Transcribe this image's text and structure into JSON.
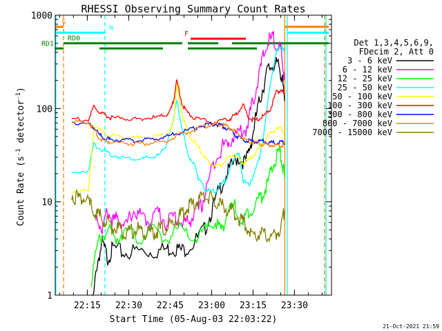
{
  "chart_data": {
    "type": "line",
    "title": "RHESSI Observing Summary Count Rates",
    "xlabel": "Start Time (05-Aug-03 22:03:22)",
    "ylabel": "Count Rate (s",
    "ylabel_sup": "-1",
    "ylabel_tail": " detector",
    "ylabel_tail_sup": "-1",
    "ylabel_close": ")",
    "xlim_min": [
      0,
      100
    ],
    "ylim": [
      1,
      1000
    ],
    "yscale": "log",
    "xticks": [
      {
        "label": "22:15",
        "min": 11.6
      },
      {
        "label": "22:30",
        "min": 26.6
      },
      {
        "label": "22:45",
        "min": 41.6
      },
      {
        "label": "23:00",
        "min": 56.6
      },
      {
        "label": "23:15",
        "min": 71.6
      },
      {
        "label": "23:30",
        "min": 86.6
      }
    ],
    "yticks": [
      {
        "label": "1",
        "v": 1
      },
      {
        "label": "10",
        "v": 10
      },
      {
        "label": "100",
        "v": 100
      },
      {
        "label": "1000",
        "v": 1000
      }
    ],
    "legend_header": [
      "Det 1,3,4,5,6,9,",
      "FDecim 2, Att 0"
    ],
    "series": [
      {
        "name": "3 - 6 keV",
        "color": "#000000",
        "x": [
          13,
          15,
          17,
          19,
          21,
          25,
          30,
          35,
          40,
          43,
          46,
          50,
          54,
          57,
          60,
          63,
          66,
          69,
          71,
          73,
          75,
          77,
          79,
          81,
          82,
          83
        ],
        "y": [
          0.5,
          2.1,
          3.6,
          2.5,
          3.2,
          2.8,
          3.0,
          2.9,
          3.1,
          3.2,
          3.0,
          3.6,
          5.0,
          8.5,
          15,
          22,
          30,
          26,
          45,
          90,
          160,
          260,
          300,
          280,
          220,
          120
        ]
      },
      {
        "name": "6 - 12 keV",
        "color": "#ff00ff",
        "x": [
          15,
          17,
          19,
          21,
          23,
          25,
          28,
          31,
          34,
          37,
          40,
          43,
          46,
          48,
          50,
          53,
          55,
          58,
          61,
          63,
          66,
          69,
          71,
          73,
          75,
          77,
          79,
          81,
          82,
          83
        ],
        "y": [
          7,
          5,
          8,
          6,
          7,
          5,
          8,
          7,
          6,
          8,
          6,
          7,
          6,
          6,
          7,
          9,
          15,
          30,
          40,
          45,
          55,
          60,
          100,
          180,
          330,
          520,
          560,
          450,
          380,
          200
        ]
      },
      {
        "name": "12 - 25 keV",
        "color": "#00ff00",
        "x": [
          13,
          16,
          19,
          22,
          25,
          30,
          35,
          40,
          45,
          50,
          55,
          58,
          60,
          62,
          65,
          68,
          70,
          73,
          75,
          77,
          79,
          81,
          82,
          83
        ],
        "y": [
          1.5,
          4,
          5,
          4,
          5,
          4,
          5,
          4,
          5,
          4,
          5,
          6,
          5,
          7,
          9,
          6,
          8,
          10,
          12,
          16,
          25,
          35,
          28,
          18
        ]
      },
      {
        "name": "25 - 50 keV",
        "color": "#00ffff",
        "x": [
          6,
          12,
          14,
          17,
          20,
          24,
          28,
          32,
          35,
          38,
          40,
          42,
          43,
          44,
          46,
          48,
          50,
          51,
          52,
          54,
          56,
          58,
          60,
          62,
          64,
          66,
          67,
          68,
          70,
          72,
          74,
          76,
          78,
          80,
          82,
          83
        ],
        "y": [
          20,
          22,
          42,
          36,
          32,
          30,
          29,
          29,
          30,
          32,
          40,
          60,
          85,
          120,
          60,
          32,
          26,
          22,
          17,
          14,
          13,
          13,
          15,
          18,
          25,
          35,
          28,
          17,
          15,
          20,
          30,
          70,
          200,
          400,
          480,
          400
        ]
      },
      {
        "name": "50 - 100 keV",
        "color": "#ffff00",
        "x": [
          6,
          12,
          14,
          17,
          20,
          24,
          28,
          32,
          36,
          40,
          42,
          43,
          44,
          46,
          48,
          50,
          52,
          54,
          56,
          58,
          60,
          62,
          64,
          66,
          68,
          70,
          72,
          74,
          76,
          78,
          80,
          82,
          83
        ],
        "y": [
          13,
          13,
          64,
          56,
          51,
          50,
          49,
          49,
          50,
          52,
          60,
          80,
          180,
          85,
          55,
          45,
          38,
          30,
          26,
          24,
          25,
          28,
          32,
          30,
          26,
          28,
          32,
          38,
          45,
          55,
          60,
          62,
          52
        ]
      },
      {
        "name": "100 - 300 keV",
        "color": "#ff0000",
        "x": [
          6,
          12,
          14,
          16,
          18,
          20,
          24,
          28,
          32,
          36,
          40,
          42,
          43,
          44,
          46,
          48,
          50,
          54,
          58,
          62,
          64,
          66,
          68,
          70,
          72,
          74,
          76,
          78,
          80,
          82,
          83
        ],
        "y": [
          78,
          75,
          105,
          90,
          84,
          80,
          78,
          77,
          78,
          80,
          84,
          100,
          130,
          200,
          110,
          90,
          80,
          75,
          70,
          75,
          80,
          90,
          110,
          80,
          75,
          78,
          85,
          100,
          150,
          160,
          140
        ]
      },
      {
        "name": "300 - 800 keV",
        "color": "#0000ff",
        "x": [
          6,
          12,
          14,
          16,
          18,
          20,
          24,
          28,
          32,
          36,
          40,
          44,
          48,
          52,
          56,
          58,
          60,
          62,
          64,
          66,
          68,
          70,
          72,
          74,
          76,
          78,
          80,
          82,
          83
        ],
        "y": [
          72,
          68,
          62,
          52,
          48,
          46,
          46,
          45,
          46,
          47,
          50,
          54,
          58,
          64,
          68,
          68,
          66,
          62,
          56,
          50,
          46,
          45,
          44,
          45,
          44,
          43,
          43,
          44,
          43
        ]
      },
      {
        "name": "800 - 7000 keV",
        "color": "#ff8000",
        "x": [
          6,
          12,
          14,
          16,
          18,
          20,
          24,
          28,
          32,
          36,
          40,
          44,
          48,
          52,
          56,
          58,
          60,
          62,
          64,
          66,
          68,
          70,
          72,
          74,
          76,
          78,
          80,
          82,
          83
        ],
        "y": [
          70,
          72,
          60,
          48,
          45,
          44,
          43,
          42,
          42,
          43,
          45,
          50,
          56,
          62,
          67,
          68,
          67,
          65,
          60,
          54,
          48,
          44,
          43,
          42,
          41,
          41,
          40,
          40,
          42
        ]
      },
      {
        "name": "7000 - 15000 keV",
        "color": "#808000",
        "x": [
          6,
          8,
          10,
          12,
          14,
          16,
          18,
          20,
          22,
          24,
          26,
          28,
          30,
          32,
          34,
          36,
          38,
          40,
          42,
          44,
          46,
          48,
          50,
          52,
          54,
          56,
          58,
          60,
          62,
          64,
          66,
          68,
          70,
          72,
          74,
          76,
          78,
          80,
          82,
          83
        ],
        "y": [
          12,
          11,
          11,
          9.5,
          8.0,
          7.0,
          6.0,
          5.5,
          5.2,
          5.0,
          4.8,
          4.8,
          5.0,
          4.7,
          4.5,
          4.8,
          5.0,
          5.2,
          5.8,
          6.5,
          7.5,
          8.5,
          9.5,
          10.5,
          11.5,
          11.0,
          10.0,
          9.0,
          8.5,
          8.0,
          7.0,
          6.0,
          5.0,
          4.5,
          4.5,
          4.2,
          4.2,
          4.5,
          5.5,
          8
        ]
      }
    ],
    "bars": [
      {
        "label": "S",
        "color": "#ff8000",
        "y": 750,
        "segments": [
          [
            0,
            3
          ],
          [
            83,
            99
          ]
        ]
      },
      {
        "label": "N",
        "color": "#00ffff",
        "y": 650,
        "segments": [
          [
            0,
            18
          ],
          [
            84,
            99
          ]
        ]
      },
      {
        "label": "RD0",
        "color": "#008000",
        "y": 500,
        "segments": [
          [
            3,
            46
          ],
          [
            48,
            59
          ]
        ]
      },
      {
        "label": "RD1",
        "color": "#008000",
        "y": 440,
        "segments": [
          [
            0,
            3
          ],
          [
            48,
            73
          ]
        ]
      },
      {
        "label": "F",
        "color": "#ff0000",
        "y": 560,
        "segments": [
          [
            49,
            69
          ]
        ]
      }
    ],
    "bar_segments_extra": [
      {
        "color": "#008000",
        "y": 500,
        "segments": [
          [
            64,
            99
          ]
        ]
      },
      {
        "color": "#008000",
        "y": 440,
        "segments": [
          [
            16,
            39
          ]
        ]
      }
    ],
    "vlines": [
      {
        "min": 0.2,
        "color": "#00ffff",
        "dash": false
      },
      {
        "min": 3.0,
        "color": "#ff8000",
        "dash": true
      },
      {
        "min": 18.0,
        "color": "#00ffff",
        "dash": true
      },
      {
        "min": 83.1,
        "color": "#ff8000",
        "dash": false
      },
      {
        "min": 84.0,
        "color": "#00ffff",
        "dash": false
      },
      {
        "min": 97.5,
        "color": "#ff8000",
        "dash": true
      },
      {
        "min": 98.0,
        "color": "#00ffff",
        "dash": false
      }
    ]
  },
  "footer": {
    "timestamp": "21-Oct-2021 21:59"
  }
}
